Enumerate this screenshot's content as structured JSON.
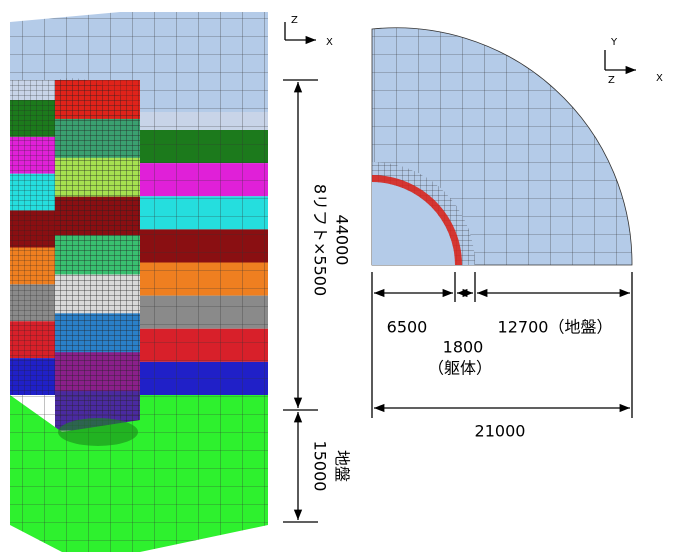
{
  "left_view": {
    "axis_labels": {
      "vertical": "Z",
      "horizontal": "X"
    },
    "height_total": 44000,
    "lifts": "8リフト×5500",
    "ground_height": 15000,
    "ground_label": "地盤"
  },
  "right_view": {
    "axis_labels": {
      "vertical": "Y",
      "depth": "Z",
      "horizontal": "X"
    },
    "inner_radius": 6500,
    "wall": 1800,
    "wall_label": "（躯体）",
    "ground_width": "12700（地盤）",
    "total_radius": 21000
  }
}
